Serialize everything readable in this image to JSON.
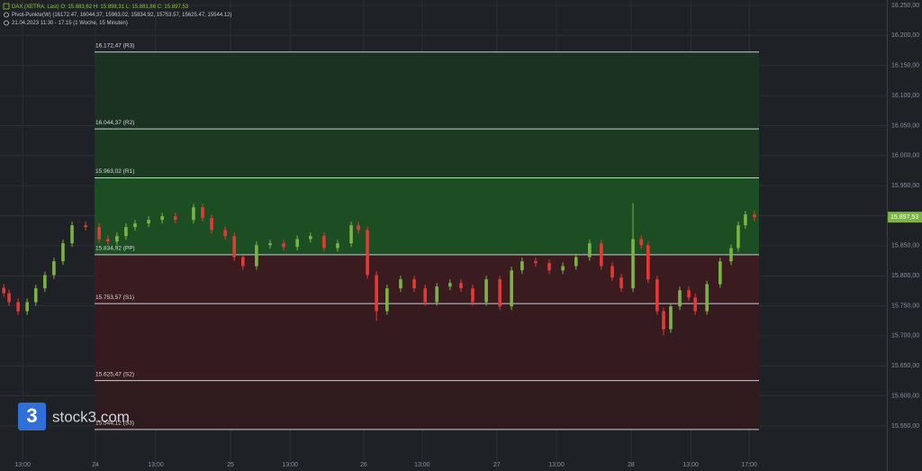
{
  "header": {
    "symbol_line": "DAX (XETRA, Last)  O: 15.883,62  H: 15.898,31  L: 15.881,86  C: 15.897,53",
    "indicator_line": "Pivot-Punkte(W)  (16172.47, 16044.37, 15963.02, 15834.92, 15753.57, 15625.47, 15544.12)",
    "time_line": "21.04.2023 11:30 - 17:15  (1 Woche, 15 Minuten)"
  },
  "watermark": {
    "logo": "3",
    "text": "stock3.com"
  },
  "chart_data": {
    "type": "candlestick",
    "up_color": "#7cb342",
    "down_color": "#e53935",
    "grid": true,
    "xlim": [
      -25.3,
      209.8
    ],
    "ylim": [
      15475,
      16259
    ],
    "xticks": [
      {
        "value": -19.3,
        "label": "13:00"
      },
      {
        "value": 0,
        "label": "24"
      },
      {
        "value": 16,
        "label": "13:00"
      },
      {
        "value": 35.8,
        "label": "25"
      },
      {
        "value": 51.6,
        "label": "13:00"
      },
      {
        "value": 71.1,
        "label": "26"
      },
      {
        "value": 86.6,
        "label": "13:00"
      },
      {
        "value": 106.4,
        "label": "27"
      },
      {
        "value": 122.2,
        "label": "13:00"
      },
      {
        "value": 142,
        "label": "28"
      },
      {
        "value": 157.8,
        "label": "13:00"
      },
      {
        "value": 173.3,
        "label": "17:00"
      }
    ],
    "yticks": [
      {
        "value": 15550,
        "label": "15.550,00"
      },
      {
        "value": 15600,
        "label": "15.600,00"
      },
      {
        "value": 15650,
        "label": "15.650,00"
      },
      {
        "value": 15700,
        "label": "15.700,00"
      },
      {
        "value": 15750,
        "label": "15.750,00"
      },
      {
        "value": 15800,
        "label": "15.800,00"
      },
      {
        "value": 15850,
        "label": "15.850,00"
      },
      {
        "value": 15900,
        "label": "15.900,00"
      },
      {
        "value": 15950,
        "label": "15.950,00"
      },
      {
        "value": 16000,
        "label": "16.000,00"
      },
      {
        "value": 16050,
        "label": "16.050,00"
      },
      {
        "value": 16100,
        "label": "16.100,00"
      },
      {
        "value": 16150,
        "label": "16.150,00"
      },
      {
        "value": 16200,
        "label": "16.200,00"
      },
      {
        "value": 16250,
        "label": "16.250,00"
      }
    ],
    "levels": [
      {
        "value": 16172.47,
        "label": "16.172,47 (R3)"
      },
      {
        "value": 16044.37,
        "label": "16.044,37 (R2)"
      },
      {
        "value": 15963.02,
        "label": "15.963,02 (R1)"
      },
      {
        "value": 15834.92,
        "label": "15.834,92 (PP)"
      },
      {
        "value": 15753.57,
        "label": "15.753,57 (S1)"
      },
      {
        "value": 15625.47,
        "label": "15.625,47 (S2)"
      },
      {
        "value": 15544.12,
        "label": "15.544,12 (S3)"
      }
    ],
    "last_price": {
      "value": 15897.53,
      "label": "15.897,53"
    },
    "x": [
      -24.3,
      -22.9,
      -20.5,
      -18.1,
      -15.8,
      -13.4,
      -11.0,
      -8.6,
      -6.2,
      -2.6,
      1.0,
      3.3,
      5.7,
      8.1,
      10.5,
      14.1,
      17.7,
      21.2,
      26.0,
      28.4,
      30.8,
      34.4,
      36.8,
      39.1,
      42.7,
      46.3,
      49.9,
      53.5,
      57.0,
      60.6,
      64.2,
      67.8,
      69.7,
      72.1,
      74.5,
      77.3,
      80.9,
      84.5,
      87.4,
      90.5,
      94.0,
      96.9,
      100.0,
      103.6,
      107.2,
      110.3,
      113.1,
      116.7,
      120.3,
      123.9,
      127.4,
      131.0,
      134.1,
      137.0,
      139.4,
      142.5,
      144.7,
      146.5,
      148.9,
      150.6,
      152.5,
      154.9,
      157.3,
      159.0,
      162.1,
      165.6,
      168.5,
      170.4,
      172.3,
      174.7
    ],
    "open": [
      15780,
      15771,
      15756,
      15741,
      15756,
      15779,
      15801,
      15824,
      15854,
      15884,
      15881,
      15861,
      15857,
      15866,
      15881,
      15887,
      15893,
      15899,
      15893,
      15914,
      15896,
      15876,
      15866,
      15831,
      15816,
      15851,
      15854,
      15848,
      15861,
      15866,
      15846,
      15854,
      15884,
      15876,
      15801,
      15741,
      15779,
      15794,
      15779,
      15756,
      15782,
      15788,
      15779,
      15756,
      15794,
      15749,
      15809,
      15824,
      15821,
      15809,
      15816,
      15831,
      15854,
      15816,
      15797,
      15779,
      15861,
      15851,
      15794,
      15741,
      15711,
      15749,
      15776,
      15764,
      15741,
      15786,
      15824,
      15846,
      15884,
      15902
    ],
    "high": [
      15786,
      15777,
      15762,
      15762,
      15785,
      15807,
      15830,
      15860,
      15890,
      15890,
      15887,
      15867,
      15872,
      15887,
      15893,
      15899,
      15905,
      15905,
      15920,
      15920,
      15902,
      15882,
      15872,
      15837,
      15857,
      15860,
      15860,
      15867,
      15872,
      15872,
      15860,
      15890,
      15890,
      15882,
      15807,
      15785,
      15800,
      15800,
      15785,
      15788,
      15794,
      15794,
      15785,
      15800,
      15800,
      15815,
      15830,
      15830,
      15827,
      15822,
      15837,
      15860,
      15860,
      15822,
      15803,
      15921,
      15867,
      15857,
      15800,
      15747,
      15755,
      15782,
      15782,
      15770,
      15792,
      15830,
      15852,
      15890,
      15908,
      15908
    ],
    "low": [
      15765,
      15750,
      15735,
      15735,
      15750,
      15773,
      15795,
      15818,
      15848,
      15875,
      15855,
      15851,
      15851,
      15860,
      15875,
      15881,
      15887,
      15887,
      15887,
      15890,
      15870,
      15860,
      15825,
      15810,
      15810,
      15845,
      15842,
      15842,
      15855,
      15840,
      15840,
      15848,
      15870,
      15795,
      15725,
      15735,
      15773,
      15773,
      15750,
      15750,
      15776,
      15773,
      15750,
      15750,
      15743,
      15743,
      15803,
      15815,
      15803,
      15803,
      15810,
      15825,
      15810,
      15791,
      15773,
      15773,
      15845,
      15788,
      15735,
      15701,
      15705,
      15743,
      15758,
      15735,
      15735,
      15780,
      15818,
      15840,
      15878,
      15891
    ],
    "close": [
      15771,
      15756,
      15741,
      15756,
      15779,
      15801,
      15824,
      15854,
      15884,
      15881,
      15861,
      15857,
      15866,
      15881,
      15887,
      15893,
      15899,
      15893,
      15914,
      15896,
      15876,
      15866,
      15831,
      15816,
      15851,
      15854,
      15848,
      15861,
      15866,
      15846,
      15854,
      15884,
      15876,
      15801,
      15741,
      15779,
      15794,
      15779,
      15756,
      15782,
      15788,
      15779,
      15756,
      15794,
      15749,
      15809,
      15824,
      15821,
      15809,
      15816,
      15831,
      15854,
      15816,
      15797,
      15779,
      15861,
      15851,
      15794,
      15741,
      15711,
      15749,
      15776,
      15764,
      15741,
      15786,
      15824,
      15846,
      15884,
      15902,
      15897.53
    ]
  }
}
